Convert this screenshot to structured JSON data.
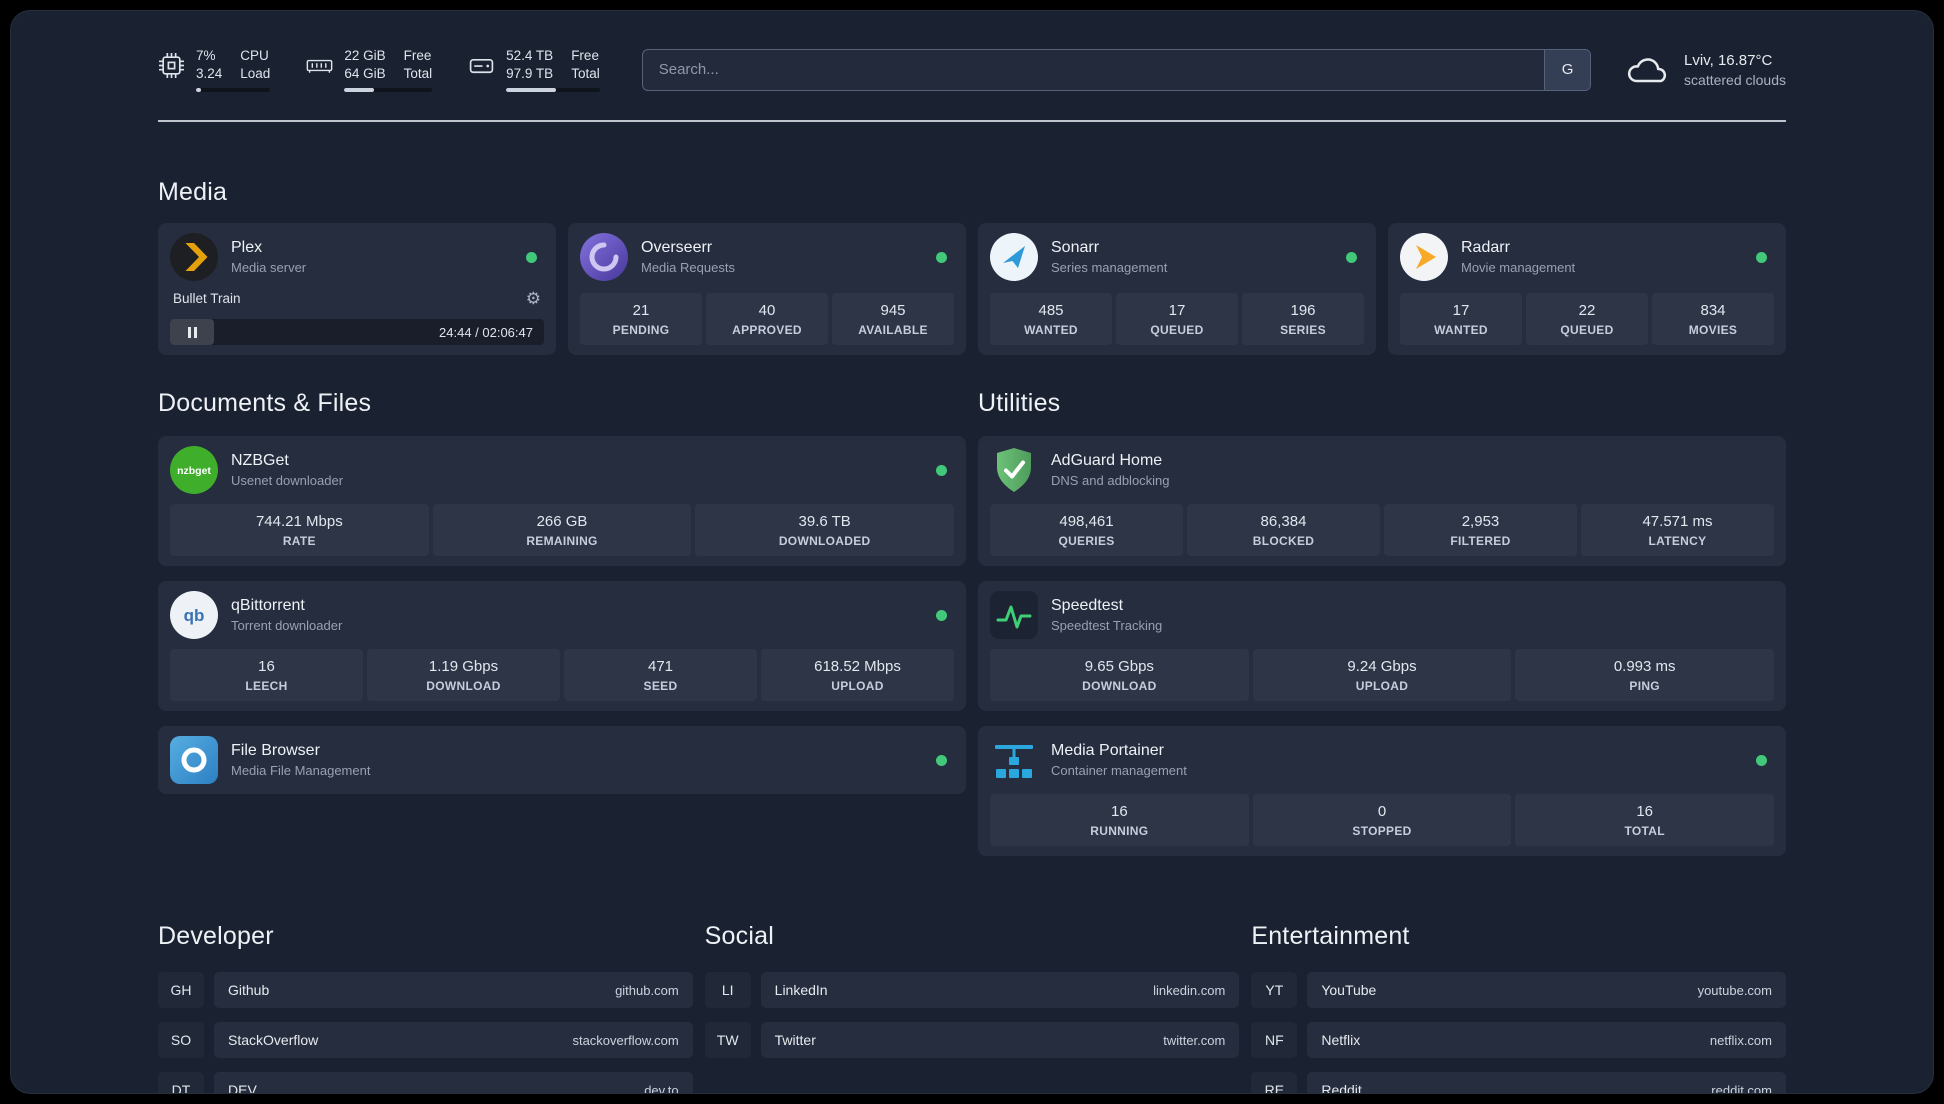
{
  "colors": {
    "status_green": "#41c979",
    "plex_orange": "#e5a00d",
    "overseerr_purple": "#5f4bb6",
    "sonarr_blue": "#2f9ad8",
    "radarr_orange": "#f7a928",
    "nzbget_green": "#3fae2a",
    "qbittorrent_blue": "#3873b3",
    "filebrowser_blue": "#3f8fd1",
    "adguard_green": "#5eae6b",
    "speedtest_green": "#3ecf77",
    "portainer_blue": "#2aa7dd"
  },
  "topbar": {
    "cpu": {
      "percent": "7%",
      "load": "3.24",
      "label_top": "CPU",
      "label_bottom": "Load",
      "bar_percent": 7
    },
    "memory": {
      "free": "22 GiB",
      "total": "64 GiB",
      "label_top": "Free",
      "label_bottom": "Total",
      "bar_percent": 34
    },
    "disk": {
      "free": "52.4 TB",
      "total": "97.9 TB",
      "label_top": "Free",
      "label_bottom": "Total",
      "bar_percent": 53
    },
    "search": {
      "placeholder": "Search...",
      "provider": "G"
    },
    "weather": {
      "location": "Lviv, 16.87°C",
      "condition": "scattered clouds"
    }
  },
  "sections": {
    "media": "Media",
    "documents": "Documents & Files",
    "utilities": "Utilities",
    "developer": "Developer",
    "social": "Social",
    "entertainment": "Entertainment"
  },
  "services": {
    "plex": {
      "name": "Plex",
      "desc": "Media server",
      "now_playing": "Bullet Train",
      "time": "24:44 / 02:06:47"
    },
    "overseerr": {
      "name": "Overseerr",
      "desc": "Media Requests",
      "stats": [
        {
          "value": "21",
          "label": "PENDING"
        },
        {
          "value": "40",
          "label": "APPROVED"
        },
        {
          "value": "945",
          "label": "AVAILABLE"
        }
      ]
    },
    "sonarr": {
      "name": "Sonarr",
      "desc": "Series management",
      "stats": [
        {
          "value": "485",
          "label": "WANTED"
        },
        {
          "value": "17",
          "label": "QUEUED"
        },
        {
          "value": "196",
          "label": "SERIES"
        }
      ]
    },
    "radarr": {
      "name": "Radarr",
      "desc": "Movie management",
      "stats": [
        {
          "value": "17",
          "label": "WANTED"
        },
        {
          "value": "22",
          "label": "QUEUED"
        },
        {
          "value": "834",
          "label": "MOVIES"
        }
      ]
    },
    "nzbget": {
      "name": "NZBGet",
      "desc": "Usenet downloader",
      "icon_text": "nzbget",
      "stats": [
        {
          "value": "744.21 Mbps",
          "label": "RATE"
        },
        {
          "value": "266 GB",
          "label": "REMAINING"
        },
        {
          "value": "39.6 TB",
          "label": "DOWNLOADED"
        }
      ]
    },
    "qbittorrent": {
      "name": "qBittorrent",
      "desc": "Torrent downloader",
      "icon_text": "qb",
      "stats": [
        {
          "value": "16",
          "label": "LEECH"
        },
        {
          "value": "1.19 Gbps",
          "label": "DOWNLOAD"
        },
        {
          "value": "471",
          "label": "SEED"
        },
        {
          "value": "618.52 Mbps",
          "label": "UPLOAD"
        }
      ]
    },
    "filebrowser": {
      "name": "File Browser",
      "desc": "Media File Management"
    },
    "adguard": {
      "name": "AdGuard Home",
      "desc": "DNS and adblocking",
      "stats": [
        {
          "value": "498,461",
          "label": "QUERIES"
        },
        {
          "value": "86,384",
          "label": "BLOCKED"
        },
        {
          "value": "2,953",
          "label": "FILTERED"
        },
        {
          "value": "47.571 ms",
          "label": "LATENCY"
        }
      ]
    },
    "speedtest": {
      "name": "Speedtest",
      "desc": "Speedtest Tracking",
      "stats": [
        {
          "value": "9.65 Gbps",
          "label": "DOWNLOAD"
        },
        {
          "value": "9.24 Gbps",
          "label": "UPLOAD"
        },
        {
          "value": "0.993 ms",
          "label": "PING"
        }
      ]
    },
    "portainer": {
      "name": "Media Portainer",
      "desc": "Container management",
      "stats": [
        {
          "value": "16",
          "label": "RUNNING"
        },
        {
          "value": "0",
          "label": "STOPPED"
        },
        {
          "value": "16",
          "label": "TOTAL"
        }
      ]
    }
  },
  "bookmarks": {
    "developer": [
      {
        "abbr": "GH",
        "name": "Github",
        "url": "github.com"
      },
      {
        "abbr": "SO",
        "name": "StackOverflow",
        "url": "stackoverflow.com"
      },
      {
        "abbr": "DT",
        "name": "DEV",
        "url": "dev.to"
      }
    ],
    "social": [
      {
        "abbr": "LI",
        "name": "LinkedIn",
        "url": "linkedin.com"
      },
      {
        "abbr": "TW",
        "name": "Twitter",
        "url": "twitter.com"
      }
    ],
    "entertainment": [
      {
        "abbr": "YT",
        "name": "YouTube",
        "url": "youtube.com"
      },
      {
        "abbr": "NF",
        "name": "Netflix",
        "url": "netflix.com"
      },
      {
        "abbr": "RE",
        "name": "Reddit",
        "url": "reddit.com"
      }
    ]
  }
}
